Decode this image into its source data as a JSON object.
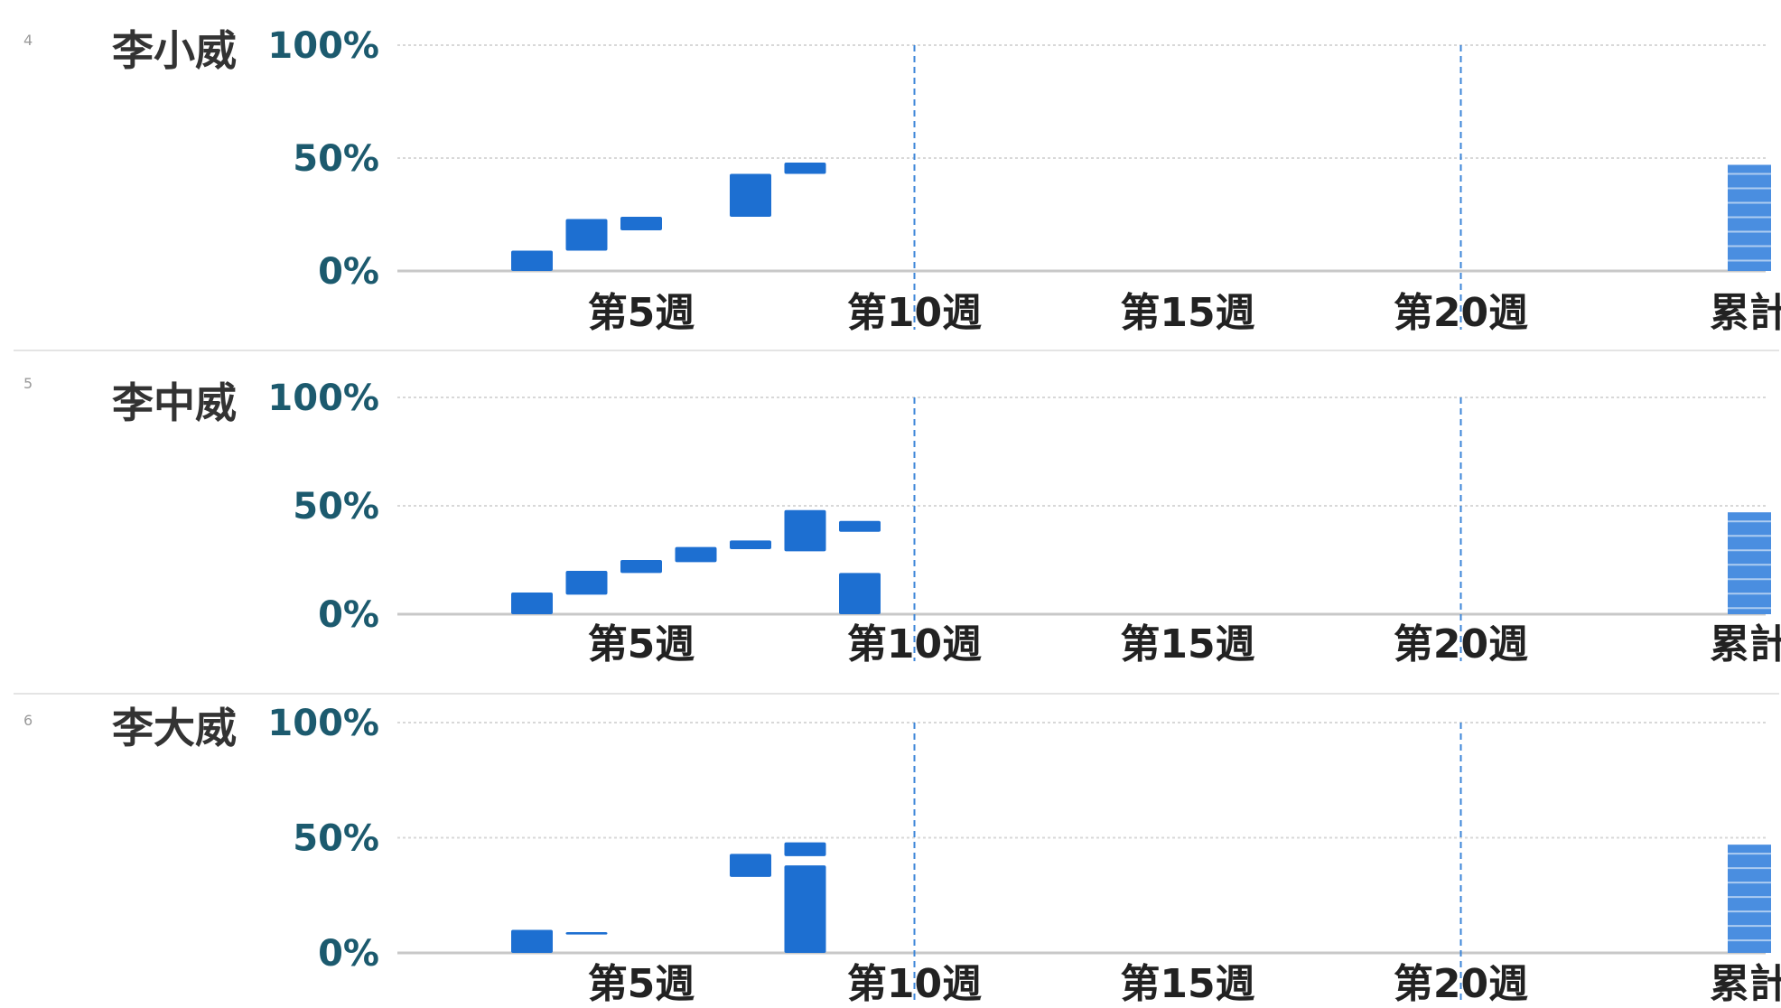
{
  "colors": {
    "bar": "#1d6fd1",
    "cumulative_bar": "#4a8ee0",
    "grid": "#d8d8d8",
    "baseline": "#c8c8c8",
    "milestone_line": "#3c86d8",
    "y_tick_text": "#1c5a6e",
    "separator": "#e4e4e4"
  },
  "chart_data": [
    {
      "type": "bar",
      "variant": "floating-range",
      "row_number": "4",
      "name": "李小威",
      "yticks": [
        "100%",
        "50%",
        "0%"
      ],
      "ylim": [
        0,
        100
      ],
      "xticks": [
        {
          "week": 5,
          "label": "第5週"
        },
        {
          "week": 10,
          "label": "第10週"
        },
        {
          "week": 15,
          "label": "第15週"
        },
        {
          "week": 20,
          "label": "第20週"
        }
      ],
      "cumulative_label": "累計",
      "milestones": [
        10,
        20
      ],
      "grid": true,
      "bars": [
        {
          "week": 3,
          "low": 0,
          "high": 9
        },
        {
          "week": 4,
          "low": 9,
          "high": 23
        },
        {
          "week": 5,
          "low": 18,
          "high": 24
        },
        {
          "week": 7,
          "low": 24,
          "high": 43
        },
        {
          "week": 8,
          "low": 43,
          "high": 48
        }
      ],
      "cumulative": {
        "low": 0,
        "high": 47
      }
    },
    {
      "type": "bar",
      "variant": "floating-range",
      "row_number": "5",
      "name": "李中威",
      "yticks": [
        "100%",
        "50%",
        "0%"
      ],
      "ylim": [
        0,
        100
      ],
      "xticks": [
        {
          "week": 5,
          "label": "第5週"
        },
        {
          "week": 10,
          "label": "第10週"
        },
        {
          "week": 15,
          "label": "第15週"
        },
        {
          "week": 20,
          "label": "第20週"
        }
      ],
      "cumulative_label": "累計",
      "milestones": [
        10,
        20
      ],
      "grid": true,
      "bars": [
        {
          "week": 3,
          "low": 0,
          "high": 10
        },
        {
          "week": 4,
          "low": 9,
          "high": 20
        },
        {
          "week": 5,
          "low": 19,
          "high": 25
        },
        {
          "week": 6,
          "low": 24,
          "high": 31
        },
        {
          "week": 7,
          "low": 30,
          "high": 34
        },
        {
          "week": 8,
          "low": 29,
          "high": 48
        },
        {
          "week": 9,
          "low": 38,
          "high": 43
        },
        {
          "week": 9,
          "low": 0,
          "high": 19
        }
      ],
      "cumulative": {
        "low": 0,
        "high": 47
      }
    },
    {
      "type": "bar",
      "variant": "floating-range",
      "row_number": "6",
      "name": "李大威",
      "yticks": [
        "100%",
        "50%",
        "0%"
      ],
      "ylim": [
        0,
        100
      ],
      "xticks": [
        {
          "week": 5,
          "label": "第5週"
        },
        {
          "week": 10,
          "label": "第10週"
        },
        {
          "week": 15,
          "label": "第15週"
        },
        {
          "week": 20,
          "label": "第20週"
        }
      ],
      "cumulative_label": "累計",
      "milestones": [
        10,
        20
      ],
      "grid": true,
      "bars": [
        {
          "week": 3,
          "low": 0,
          "high": 10
        },
        {
          "week": 4,
          "low": 8,
          "high": 9
        },
        {
          "week": 7,
          "low": 33,
          "high": 43
        },
        {
          "week": 8,
          "low": 42,
          "high": 48
        },
        {
          "week": 8,
          "low": 0,
          "high": 38
        }
      ],
      "cumulative": {
        "low": 0,
        "high": 47
      }
    }
  ]
}
